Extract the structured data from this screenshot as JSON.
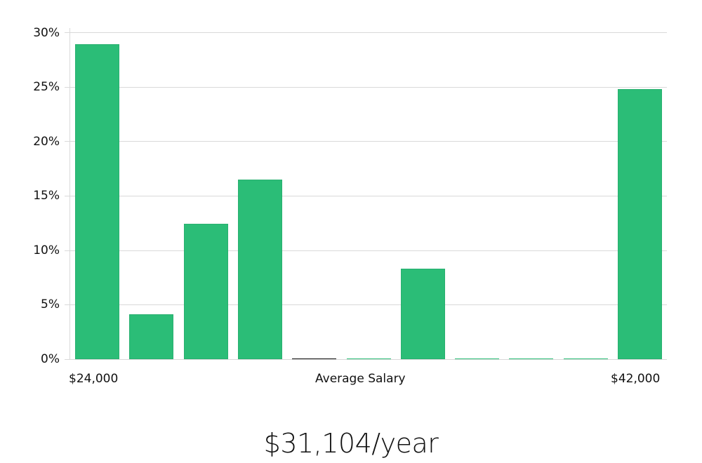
{
  "chart_data": {
    "type": "bar",
    "title": "",
    "xlabel": "Average Salary",
    "ylabel": "",
    "x_range_labels": [
      "$24,000",
      "$42,000"
    ],
    "categories": [
      "bin1",
      "bin2",
      "bin3",
      "bin4",
      "bin5",
      "bin6",
      "bin7",
      "bin8",
      "bin9",
      "bin10",
      "bin11"
    ],
    "values": [
      28.9,
      4.1,
      12.4,
      16.5,
      0,
      0,
      8.3,
      0,
      0,
      0,
      24.8
    ],
    "value_unit": "%",
    "ylim": [
      0,
      30
    ],
    "yticks": [
      "0%",
      "5%",
      "10%",
      "15%",
      "20%",
      "25%",
      "30%"
    ],
    "grid": true,
    "legend": null,
    "bar_color": "#2bbd77"
  },
  "axis": {
    "y_ticks": [
      "30%",
      "25%",
      "20%",
      "15%",
      "10%",
      "5%",
      "0%"
    ],
    "x_left_label": "$24,000",
    "x_center_label": "Average Salary",
    "x_right_label": "$42,000"
  },
  "summary": {
    "average_salary_text": "$31,104/year"
  }
}
